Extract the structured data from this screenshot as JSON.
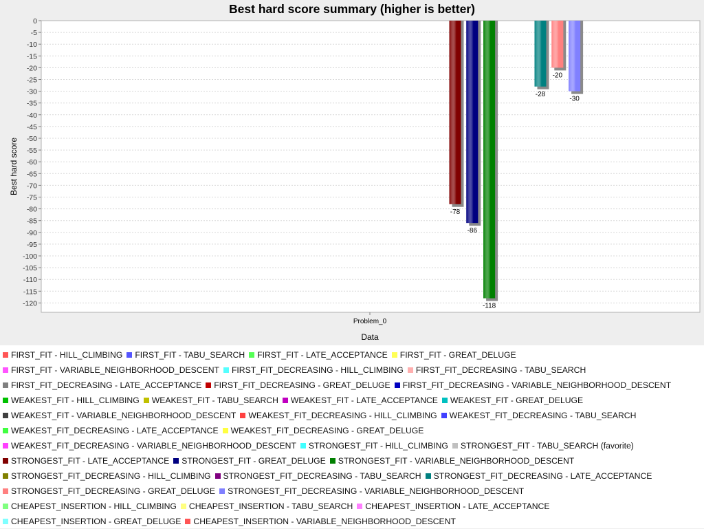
{
  "chart_data": {
    "type": "bar",
    "title": "Best hard score summary (higher is better)",
    "xlabel": "Data",
    "ylabel": "Best hard score",
    "categories": [
      "Problem_0"
    ],
    "ylim": [
      -124,
      0
    ],
    "yticks": [
      0,
      -5,
      -10,
      -15,
      -20,
      -25,
      -30,
      -35,
      -40,
      -45,
      -50,
      -55,
      -60,
      -65,
      -70,
      -75,
      -80,
      -85,
      -90,
      -95,
      -100,
      -105,
      -110,
      -115,
      -120
    ],
    "grid": true,
    "legend_position": "bottom",
    "series": [
      {
        "name": "FIRST_FIT - HILL_CLIMBING",
        "color": "#ff5555",
        "values": [
          null
        ]
      },
      {
        "name": "FIRST_FIT - TABU_SEARCH",
        "color": "#5555ff",
        "values": [
          null
        ]
      },
      {
        "name": "FIRST_FIT - LATE_ACCEPTANCE",
        "color": "#55ff55",
        "values": [
          null
        ]
      },
      {
        "name": "FIRST_FIT - GREAT_DELUGE",
        "color": "#ffff55",
        "values": [
          null
        ]
      },
      {
        "name": "FIRST_FIT - VARIABLE_NEIGHBORHOOD_DESCENT",
        "color": "#ff55ff",
        "values": [
          null
        ]
      },
      {
        "name": "FIRST_FIT_DECREASING - HILL_CLIMBING",
        "color": "#55ffff",
        "values": [
          null
        ]
      },
      {
        "name": "FIRST_FIT_DECREASING - TABU_SEARCH",
        "color": "#ffafaf",
        "values": [
          null
        ]
      },
      {
        "name": "FIRST_FIT_DECREASING - LATE_ACCEPTANCE",
        "color": "#808080",
        "values": [
          null
        ]
      },
      {
        "name": "FIRST_FIT_DECREASING - GREAT_DELUGE",
        "color": "#c00000",
        "values": [
          null
        ]
      },
      {
        "name": "FIRST_FIT_DECREASING - VARIABLE_NEIGHBORHOOD_DESCENT",
        "color": "#0000c0",
        "values": [
          null
        ]
      },
      {
        "name": "WEAKEST_FIT - HILL_CLIMBING",
        "color": "#00c000",
        "values": [
          null
        ]
      },
      {
        "name": "WEAKEST_FIT - TABU_SEARCH",
        "color": "#c0c000",
        "values": [
          null
        ]
      },
      {
        "name": "WEAKEST_FIT - LATE_ACCEPTANCE",
        "color": "#c000c0",
        "values": [
          null
        ]
      },
      {
        "name": "WEAKEST_FIT - GREAT_DELUGE",
        "color": "#00c0c0",
        "values": [
          null
        ]
      },
      {
        "name": "WEAKEST_FIT - VARIABLE_NEIGHBORHOOD_DESCENT",
        "color": "#404040",
        "values": [
          null
        ]
      },
      {
        "name": "WEAKEST_FIT_DECREASING - HILL_CLIMBING",
        "color": "#ff4040",
        "values": [
          null
        ]
      },
      {
        "name": "WEAKEST_FIT_DECREASING - TABU_SEARCH",
        "color": "#4040ff",
        "values": [
          null
        ]
      },
      {
        "name": "WEAKEST_FIT_DECREASING - LATE_ACCEPTANCE",
        "color": "#40ff40",
        "values": [
          null
        ]
      },
      {
        "name": "WEAKEST_FIT_DECREASING - GREAT_DELUGE",
        "color": "#ffff40",
        "values": [
          null
        ]
      },
      {
        "name": "WEAKEST_FIT_DECREASING - VARIABLE_NEIGHBORHOOD_DESCENT",
        "color": "#ff40ff",
        "values": [
          null
        ]
      },
      {
        "name": "STRONGEST_FIT - HILL_CLIMBING",
        "color": "#40ffff",
        "values": [
          null
        ]
      },
      {
        "name": "STRONGEST_FIT - TABU_SEARCH (favorite)",
        "color": "#c0c0c0",
        "values": [
          null
        ]
      },
      {
        "name": "STRONGEST_FIT - LATE_ACCEPTANCE",
        "color": "#800000",
        "values": [
          -78
        ]
      },
      {
        "name": "STRONGEST_FIT - GREAT_DELUGE",
        "color": "#000080",
        "values": [
          -86
        ]
      },
      {
        "name": "STRONGEST_FIT - VARIABLE_NEIGHBORHOOD_DESCENT",
        "color": "#008000",
        "values": [
          -118
        ]
      },
      {
        "name": "STRONGEST_FIT_DECREASING - HILL_CLIMBING",
        "color": "#808000",
        "values": [
          null
        ]
      },
      {
        "name": "STRONGEST_FIT_DECREASING - TABU_SEARCH",
        "color": "#800080",
        "values": [
          null
        ]
      },
      {
        "name": "STRONGEST_FIT_DECREASING - LATE_ACCEPTANCE",
        "color": "#008080",
        "values": [
          -28
        ]
      },
      {
        "name": "STRONGEST_FIT_DECREASING - GREAT_DELUGE",
        "color": "#ff8080",
        "values": [
          -20
        ]
      },
      {
        "name": "STRONGEST_FIT_DECREASING - VARIABLE_NEIGHBORHOOD_DESCENT",
        "color": "#8080ff",
        "values": [
          -30
        ]
      },
      {
        "name": "CHEAPEST_INSERTION - HILL_CLIMBING",
        "color": "#80ff80",
        "values": [
          null
        ]
      },
      {
        "name": "CHEAPEST_INSERTION - TABU_SEARCH",
        "color": "#ffff80",
        "values": [
          null
        ]
      },
      {
        "name": "CHEAPEST_INSERTION - LATE_ACCEPTANCE",
        "color": "#ff80ff",
        "values": [
          null
        ]
      },
      {
        "name": "CHEAPEST_INSERTION - GREAT_DELUGE",
        "color": "#80ffff",
        "values": [
          null
        ]
      },
      {
        "name": "CHEAPEST_INSERTION - VARIABLE_NEIGHBORHOOD_DESCENT",
        "color": "#ff5555",
        "values": [
          null
        ]
      }
    ]
  }
}
